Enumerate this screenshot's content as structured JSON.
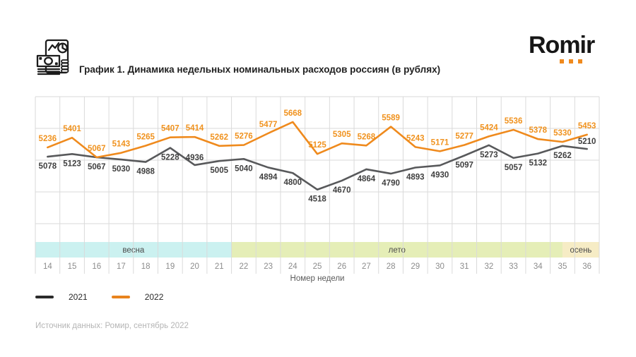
{
  "header": {
    "title": "График 1. Динамика недельных номинальных расходов россиян (в рублях)",
    "logo_text": "Romir",
    "logo_accent": "#F08A1E",
    "icon": "money-report-icon"
  },
  "chart_data": {
    "type": "line",
    "x": [
      14,
      15,
      16,
      17,
      18,
      19,
      20,
      21,
      22,
      23,
      24,
      25,
      26,
      27,
      28,
      29,
      30,
      31,
      32,
      33,
      34,
      35,
      36
    ],
    "xlabel": "Номер недели",
    "ylim": [
      3650,
      6100
    ],
    "grid": true,
    "series": [
      {
        "name": "2021",
        "color": "#58595B",
        "label_color": "#3f3f3f",
        "values": [
          5078,
          5123,
          5067,
          5030,
          4988,
          5228,
          4936,
          5005,
          5040,
          4894,
          4800,
          4518,
          4670,
          4864,
          4790,
          4893,
          4930,
          5097,
          5273,
          5057,
          5132,
          5262,
          5210
        ]
      },
      {
        "name": "2022",
        "color": "#EF8A1D",
        "label_color": "#F0921E",
        "values": [
          5236,
          5401,
          5067,
          5143,
          5265,
          5407,
          5414,
          5262,
          5276,
          5477,
          5668,
          5125,
          5305,
          5268,
          5589,
          5243,
          5171,
          5277,
          5424,
          5536,
          5378,
          5330,
          5453
        ]
      }
    ],
    "seasons": [
      {
        "label": "весна",
        "start": 14,
        "end": 22,
        "color": "#CBF1F0"
      },
      {
        "label": "лето",
        "start": 22,
        "end": 35.5,
        "color": "#E5EEB7"
      },
      {
        "label": "осень",
        "start": 35.5,
        "end": 37,
        "color": "#F6ECC5"
      }
    ],
    "week_label_color": "#8c8c8c",
    "season_label_color": "#4a4a4a"
  },
  "legend": {
    "items": [
      {
        "label": "2021",
        "color": "#2B2B2B"
      },
      {
        "label": "2022",
        "color": "#E8831D"
      }
    ]
  },
  "footer": {
    "source": "Источник данных: Ромир, сентябрь 2022"
  }
}
